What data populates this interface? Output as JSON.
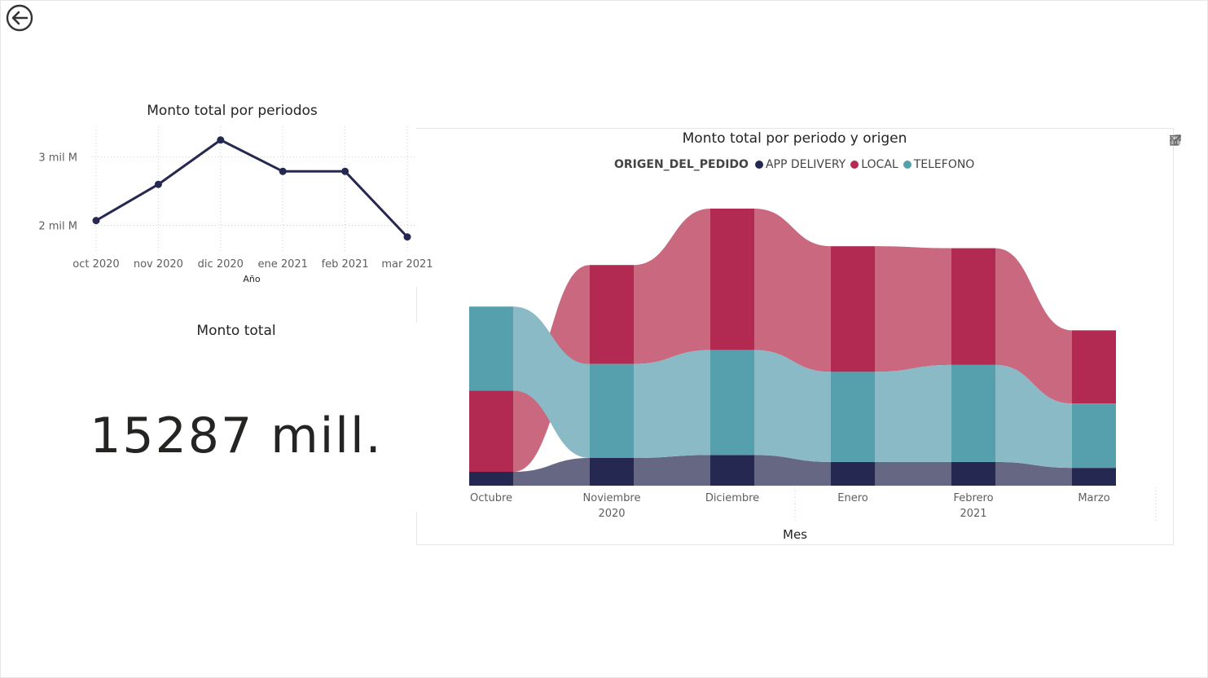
{
  "line_chart": {
    "title": "Monto total por periodos",
    "x_axis_title": "Año",
    "y_tick_labels": [
      "3 mil M",
      "2 mil M"
    ],
    "color": "#252850"
  },
  "card": {
    "title": "Monto total",
    "value": "15287 mill."
  },
  "ribbon_chart": {
    "title": "Monto total por periodo y origen",
    "legend_title": "ORIGEN_DEL_PEDIDO",
    "x_axis_title": "Mes",
    "toolbar_icons": [
      "drill-up-icon",
      "drill-down-icon",
      "expand-next-level-icon",
      "expand-hierarchy-icon",
      "filter-icon",
      "focus-mode-icon",
      "more-options-icon"
    ]
  },
  "chart_data": [
    {
      "type": "line",
      "title": "Monto total por periodos",
      "xlabel": "Año",
      "ylabel": "",
      "categories": [
        "oct 2020",
        "nov 2020",
        "dic 2020",
        "ene 2021",
        "feb 2021",
        "mar 2021"
      ],
      "series": [
        {
          "values": [
            2.07,
            2.6,
            3.25,
            2.79,
            2.79,
            1.83
          ],
          "color": "#252850"
        }
      ],
      "ylim": [
        1.6,
        3.45
      ],
      "y_ticks": [
        3,
        2
      ],
      "y_tick_labels": [
        "3 mil M",
        "2 mil M"
      ],
      "grid": true
    },
    {
      "type": "ribbon",
      "title": "Monto total por periodo y origen",
      "xlabel": "Mes",
      "categories": [
        "Octubre",
        "Noviembre",
        "Diciembre",
        "Enero",
        "Febrero",
        "Marzo"
      ],
      "year_labels": [
        "2020",
        "2021"
      ],
      "legend_title": "ORIGEN_DEL_PEDIDO",
      "legend_position": "top",
      "series": [
        {
          "name": "APP DELIVERY",
          "color": "#252850",
          "values": [
            0.14,
            0.28,
            0.31,
            0.24,
            0.24,
            0.18
          ]
        },
        {
          "name": "LOCAL",
          "color": "#b22a52",
          "values": [
            0.82,
            1.0,
            1.43,
            1.27,
            1.18,
            0.74
          ]
        },
        {
          "name": "TELEFONO",
          "color": "#569fad",
          "values": [
            0.85,
            0.95,
            1.06,
            0.91,
            0.98,
            0.65
          ]
        }
      ],
      "ylim": [
        0,
        2.8
      ],
      "grid": false
    }
  ]
}
